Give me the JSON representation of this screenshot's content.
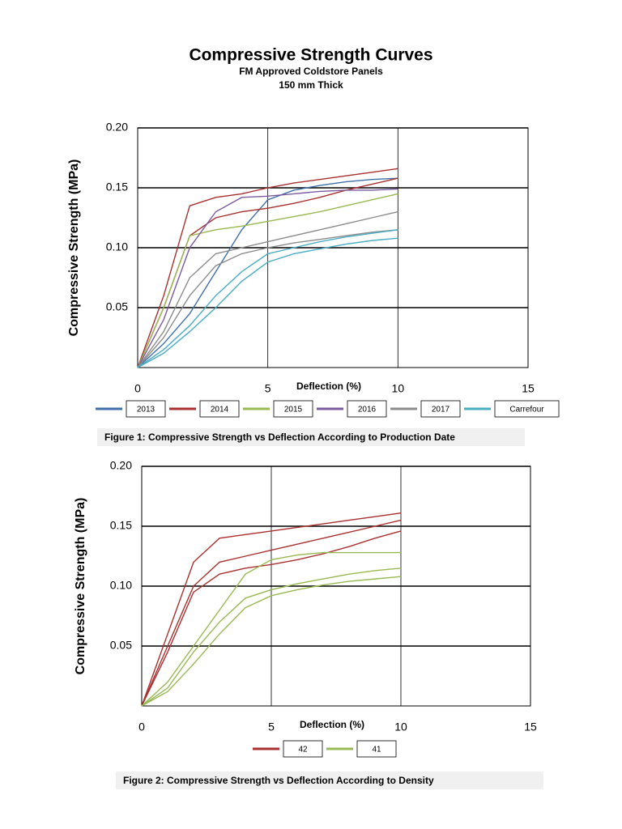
{
  "header": {
    "title": "Compressive Strength Curves",
    "subtitle": "FM Approved Coldstore Panels",
    "thickness": "150 mm Thick"
  },
  "chart_data": [
    {
      "type": "line",
      "x_label": "Deflection (%)",
      "y_label": "Compressive Strength (MPa)",
      "caption": "Figure 1: Compressive Strength vs Deflection According to Production Date",
      "x": [
        0,
        1,
        2,
        3,
        4,
        5,
        6,
        7,
        8,
        9,
        10
      ],
      "xlim": [
        0,
        15
      ],
      "xticks": [
        0,
        5,
        10,
        15
      ],
      "ylim": [
        0,
        0.2
      ],
      "yticks": [
        {
          "value": 0.05,
          "label": "0.05"
        },
        {
          "value": 0.1,
          "label": "0.10"
        },
        {
          "value": 0.15,
          "label": "0.15"
        },
        {
          "value": 0.2,
          "label": "0.20"
        }
      ],
      "grid": true,
      "series": [
        {
          "name": "2013",
          "color": "#3f6fa8",
          "curves": [
            [
              0,
              0.02,
              0.045,
              0.08,
              0.115,
              0.14,
              0.148,
              0.152,
              0.155,
              0.157,
              0.158
            ]
          ]
        },
        {
          "name": "2014",
          "color": "#a8312f",
          "curves": [
            [
              0,
              0.06,
              0.135,
              0.142,
              0.145,
              0.15,
              0.154,
              0.157,
              0.16,
              0.163,
              0.166
            ],
            [
              0,
              0.05,
              0.11,
              0.125,
              0.13,
              0.133,
              0.137,
              0.142,
              0.148,
              0.153,
              0.158
            ]
          ]
        },
        {
          "name": "2015",
          "color": "#98b954",
          "curves": [
            [
              0,
              0.05,
              0.11,
              0.115,
              0.118,
              0.122,
              0.126,
              0.13,
              0.135,
              0.14,
              0.145
            ]
          ]
        },
        {
          "name": "2016",
          "color": "#7c5ba1",
          "curves": [
            [
              0,
              0.04,
              0.1,
              0.13,
              0.142,
              0.143,
              0.145,
              0.147,
              0.148,
              0.148,
              0.149
            ]
          ]
        },
        {
          "name": "2017",
          "color": "#8c8c8c",
          "curves": [
            [
              0,
              0.03,
              0.075,
              0.095,
              0.1,
              0.105,
              0.11,
              0.115,
              0.12,
              0.125,
              0.13
            ],
            [
              0,
              0.025,
              0.06,
              0.085,
              0.095,
              0.1,
              0.104,
              0.107,
              0.11,
              0.113,
              0.115
            ]
          ]
        },
        {
          "name": "Carrefour",
          "color": "#4aacc5",
          "curves": [
            [
              0,
              0.015,
              0.035,
              0.06,
              0.08,
              0.095,
              0.1,
              0.105,
              0.109,
              0.112,
              0.115
            ],
            [
              0,
              0.012,
              0.03,
              0.05,
              0.072,
              0.088,
              0.095,
              0.099,
              0.103,
              0.106,
              0.108
            ]
          ]
        }
      ]
    },
    {
      "type": "line",
      "x_label": "Deflection (%)",
      "y_label": "Compressive Strength (MPa)",
      "caption": "Figure 2: Compressive Strength vs Deflection According to Density",
      "x": [
        0,
        1,
        2,
        3,
        4,
        5,
        6,
        7,
        8,
        9,
        10
      ],
      "xlim": [
        0,
        15
      ],
      "xticks": [
        0,
        5,
        10,
        15
      ],
      "ylim": [
        0,
        0.2
      ],
      "yticks": [
        {
          "value": 0.05,
          "label": "0.05"
        },
        {
          "value": 0.1,
          "label": "0.10"
        },
        {
          "value": 0.15,
          "label": "0.15"
        },
        {
          "value": 0.2,
          "label": "0.20"
        }
      ],
      "grid": true,
      "series": [
        {
          "name": "42",
          "color": "#a8312f",
          "curves": [
            [
              0,
              0.06,
              0.12,
              0.14,
              0.143,
              0.146,
              0.149,
              0.152,
              0.155,
              0.158,
              0.161
            ],
            [
              0,
              0.05,
              0.1,
              0.12,
              0.125,
              0.13,
              0.135,
              0.14,
              0.145,
              0.15,
              0.155
            ],
            [
              0,
              0.045,
              0.095,
              0.11,
              0.115,
              0.118,
              0.122,
              0.127,
              0.133,
              0.14,
              0.146
            ]
          ]
        },
        {
          "name": "41",
          "color": "#98b954",
          "curves": [
            [
              0,
              0.02,
              0.05,
              0.08,
              0.11,
              0.122,
              0.126,
              0.128,
              0.128,
              0.128,
              0.128
            ],
            [
              0,
              0.015,
              0.045,
              0.07,
              0.09,
              0.097,
              0.102,
              0.106,
              0.11,
              0.113,
              0.115
            ],
            [
              0,
              0.012,
              0.035,
              0.06,
              0.082,
              0.092,
              0.097,
              0.101,
              0.104,
              0.106,
              0.108
            ]
          ]
        }
      ]
    }
  ]
}
